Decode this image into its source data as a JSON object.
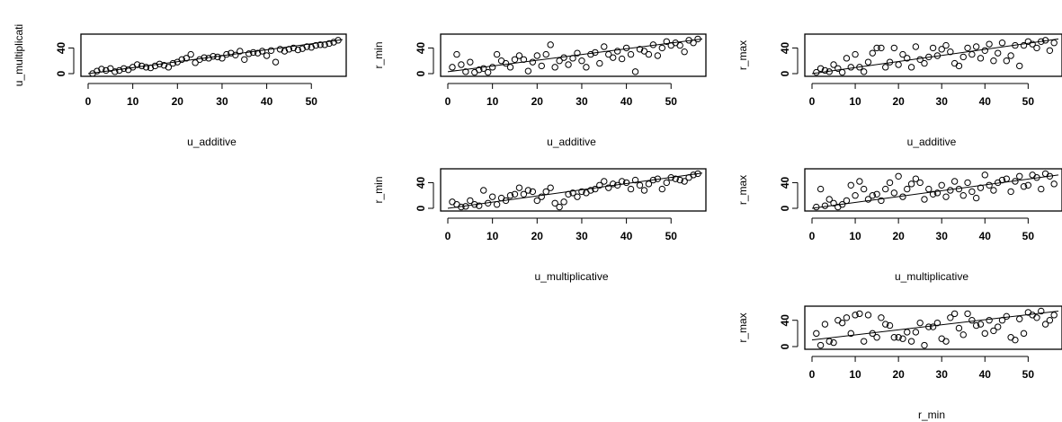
{
  "chart_data": [
    {
      "type": "scatter",
      "xlabel": "u_additive",
      "ylabel": "u_multiplicati",
      "xticks": [
        0,
        10,
        20,
        30,
        40,
        50
      ],
      "yticks": [
        0,
        40
      ],
      "xlim": [
        0,
        57
      ],
      "ylim": [
        0,
        56
      ],
      "x": [
        1,
        2,
        3,
        4,
        5,
        6,
        7,
        8,
        9,
        10,
        11,
        12,
        13,
        14,
        15,
        16,
        17,
        18,
        19,
        20,
        21,
        22,
        23,
        24,
        25,
        26,
        27,
        28,
        29,
        30,
        31,
        32,
        33,
        34,
        35,
        36,
        37,
        38,
        39,
        40,
        41,
        42,
        43,
        44,
        45,
        46,
        47,
        48,
        49,
        50,
        51,
        52,
        53,
        54,
        55,
        56
      ],
      "y": [
        0,
        4,
        7,
        5,
        8,
        3,
        5,
        8,
        6,
        10,
        14,
        12,
        10,
        9,
        12,
        15,
        13,
        10,
        16,
        18,
        22,
        24,
        30,
        17,
        22,
        25,
        24,
        27,
        26,
        24,
        30,
        32,
        29,
        35,
        22,
        31,
        33,
        32,
        35,
        28,
        36,
        18,
        38,
        35,
        38,
        40,
        37,
        39,
        42,
        41,
        44,
        45,
        45,
        47,
        49,
        52
      ],
      "fit_line": [
        [
          0,
          0
        ],
        [
          57,
          53
        ]
      ]
    },
    {
      "type": "scatter",
      "xlabel": "u_additive",
      "ylabel": "r_min",
      "xticks": [
        0,
        10,
        20,
        30,
        40,
        50
      ],
      "yticks": [
        0,
        40
      ],
      "xlim": [
        0,
        57
      ],
      "ylim": [
        0,
        56
      ],
      "x": [
        1,
        2,
        3,
        4,
        5,
        6,
        7,
        8,
        9,
        10,
        11,
        12,
        13,
        14,
        15,
        16,
        17,
        18,
        19,
        20,
        21,
        22,
        23,
        24,
        25,
        26,
        27,
        28,
        29,
        30,
        31,
        32,
        33,
        34,
        35,
        36,
        37,
        38,
        39,
        40,
        41,
        42,
        43,
        44,
        45,
        46,
        47,
        48,
        49,
        50,
        51,
        52,
        53,
        54,
        55,
        56
      ],
      "y": [
        10,
        30,
        14,
        3,
        18,
        2,
        6,
        8,
        2,
        10,
        30,
        20,
        16,
        10,
        22,
        28,
        22,
        4,
        18,
        28,
        12,
        30,
        45,
        10,
        20,
        25,
        14,
        24,
        32,
        20,
        10,
        30,
        33,
        16,
        42,
        30,
        25,
        35,
        23,
        40,
        30,
        3,
        38,
        35,
        30,
        45,
        28,
        40,
        50,
        44,
        48,
        44,
        34,
        52,
        48,
        54
      ],
      "fit_line": [
        [
          0,
          3
        ],
        [
          57,
          54
        ]
      ]
    },
    {
      "type": "scatter",
      "xlabel": "u_additive",
      "ylabel": "r_max",
      "xticks": [
        0,
        10,
        20,
        30,
        40,
        50
      ],
      "yticks": [
        0,
        40
      ],
      "xlim": [
        0,
        57
      ],
      "ylim": [
        0,
        56
      ],
      "x": [
        1,
        2,
        3,
        4,
        5,
        6,
        7,
        8,
        9,
        10,
        11,
        12,
        13,
        14,
        15,
        16,
        17,
        18,
        19,
        20,
        21,
        22,
        23,
        24,
        25,
        26,
        27,
        28,
        29,
        30,
        31,
        32,
        33,
        34,
        35,
        36,
        37,
        38,
        39,
        40,
        41,
        42,
        43,
        44,
        45,
        46,
        47,
        48,
        49,
        50,
        51,
        52,
        53,
        54,
        55,
        56
      ],
      "y": [
        2,
        8,
        5,
        3,
        14,
        8,
        2,
        24,
        10,
        30,
        10,
        3,
        18,
        32,
        40,
        40,
        10,
        18,
        40,
        14,
        30,
        24,
        10,
        42,
        22,
        16,
        26,
        40,
        28,
        38,
        44,
        34,
        16,
        12,
        26,
        40,
        30,
        42,
        24,
        36,
        46,
        20,
        32,
        48,
        20,
        28,
        44,
        12,
        44,
        50,
        46,
        40,
        50,
        52,
        36,
        48
      ],
      "fit_line": [
        [
          0,
          0
        ],
        [
          57,
          54
        ]
      ]
    },
    {
      "type": "scatter",
      "xlabel": "u_multiplicative",
      "ylabel": "r_min",
      "xticks": [
        0,
        10,
        20,
        30,
        40,
        50
      ],
      "yticks": [
        0,
        40
      ],
      "xlim": [
        0,
        57
      ],
      "ylim": [
        0,
        56
      ],
      "x": [
        1,
        2,
        3,
        4,
        5,
        6,
        7,
        8,
        9,
        10,
        11,
        12,
        13,
        14,
        15,
        16,
        17,
        18,
        19,
        20,
        21,
        22,
        23,
        24,
        25,
        26,
        27,
        28,
        29,
        30,
        31,
        32,
        33,
        34,
        35,
        36,
        37,
        38,
        39,
        40,
        41,
        42,
        43,
        44,
        45,
        46,
        47,
        48,
        49,
        50,
        51,
        52,
        53,
        54,
        55,
        56
      ],
      "y": [
        10,
        6,
        2,
        3,
        12,
        6,
        4,
        28,
        8,
        18,
        6,
        16,
        12,
        20,
        22,
        32,
        22,
        28,
        26,
        12,
        18,
        26,
        32,
        8,
        2,
        10,
        22,
        24,
        18,
        26,
        24,
        28,
        30,
        36,
        42,
        32,
        38,
        36,
        42,
        40,
        30,
        44,
        36,
        28,
        38,
        44,
        46,
        30,
        40,
        48,
        46,
        44,
        42,
        48,
        52,
        54
      ],
      "fit_line": [
        [
          0,
          0
        ],
        [
          57,
          55
        ]
      ]
    },
    {
      "type": "scatter",
      "xlabel": "u_multiplicative",
      "ylabel": "r_max",
      "xticks": [
        0,
        10,
        20,
        30,
        40,
        50
      ],
      "yticks": [
        0,
        40
      ],
      "xlim": [
        0,
        57
      ],
      "ylim": [
        0,
        56
      ],
      "x": [
        1,
        2,
        3,
        4,
        5,
        6,
        7,
        8,
        9,
        10,
        11,
        12,
        13,
        14,
        15,
        16,
        17,
        18,
        19,
        20,
        21,
        22,
        23,
        24,
        25,
        26,
        27,
        28,
        29,
        30,
        31,
        32,
        33,
        34,
        35,
        36,
        37,
        38,
        39,
        40,
        41,
        42,
        43,
        44,
        45,
        46,
        47,
        48,
        49,
        50,
        51,
        52,
        53,
        54,
        55,
        56
      ],
      "y": [
        2,
        30,
        4,
        14,
        8,
        2,
        6,
        12,
        36,
        20,
        42,
        30,
        14,
        20,
        22,
        12,
        30,
        40,
        24,
        50,
        18,
        30,
        38,
        46,
        40,
        14,
        30,
        22,
        24,
        36,
        18,
        28,
        42,
        30,
        20,
        40,
        26,
        16,
        32,
        52,
        36,
        28,
        40,
        44,
        46,
        26,
        42,
        50,
        34,
        36,
        52,
        48,
        30,
        54,
        50,
        38
      ],
      "fit_line": [
        [
          0,
          0
        ],
        [
          57,
          52
        ]
      ]
    },
    {
      "type": "scatter",
      "xlabel": "r_min",
      "ylabel": "r_max",
      "xticks": [
        0,
        10,
        20,
        30,
        40,
        50
      ],
      "yticks": [
        0,
        40
      ],
      "xlim": [
        0,
        57
      ],
      "ylim": [
        0,
        56
      ],
      "x": [
        1,
        2,
        3,
        4,
        5,
        6,
        7,
        8,
        9,
        10,
        11,
        12,
        13,
        14,
        15,
        16,
        17,
        18,
        19,
        20,
        21,
        22,
        23,
        24,
        25,
        26,
        27,
        28,
        29,
        30,
        31,
        32,
        33,
        34,
        35,
        36,
        37,
        38,
        39,
        40,
        41,
        42,
        43,
        44,
        45,
        46,
        47,
        48,
        49,
        50,
        51,
        52,
        53,
        54,
        55,
        56
      ],
      "y": [
        20,
        2,
        34,
        8,
        6,
        40,
        36,
        44,
        20,
        48,
        50,
        8,
        48,
        20,
        14,
        44,
        34,
        32,
        14,
        14,
        12,
        22,
        8,
        22,
        36,
        2,
        30,
        30,
        36,
        12,
        8,
        44,
        50,
        28,
        18,
        50,
        40,
        32,
        34,
        20,
        40,
        24,
        30,
        40,
        46,
        14,
        10,
        42,
        20,
        52,
        48,
        44,
        54,
        34,
        40,
        48
      ],
      "fit_line": [
        [
          0,
          10
        ],
        [
          57,
          54
        ]
      ]
    }
  ]
}
